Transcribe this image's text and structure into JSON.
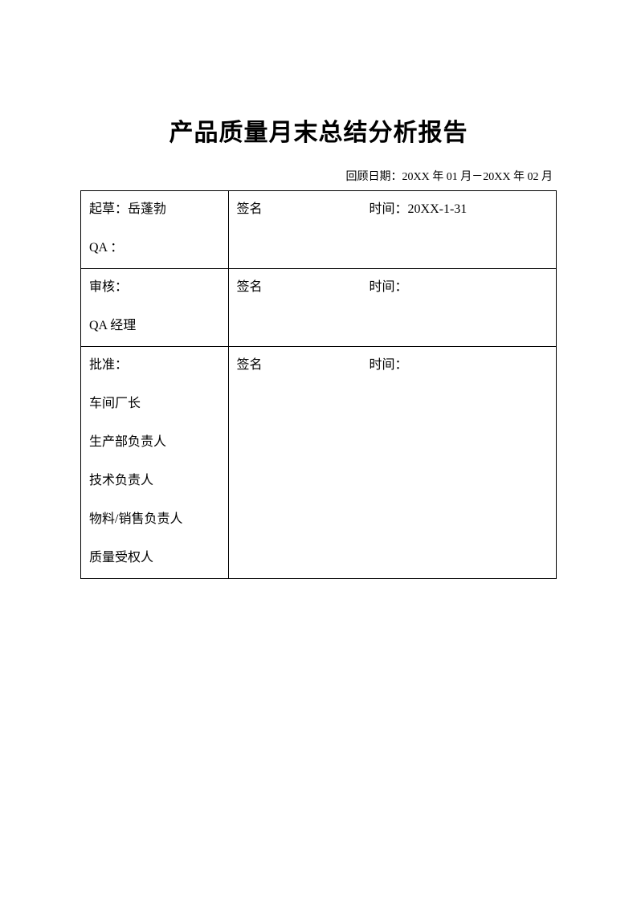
{
  "title": "产品质量月末总结分析报告",
  "review_date": "回顾日期：20XX 年 01 月－20XX 年 02 月",
  "rows": [
    {
      "left_line1": "起草：岳蓬勃",
      "left_line2": "QA ：",
      "signature_label": "签名",
      "time_label": "时间：20XX-1-31"
    },
    {
      "left_line1": "审核：",
      "left_line2": "QA 经理",
      "signature_label": "签名",
      "time_label": "时间："
    },
    {
      "left_line1": "批准：",
      "left_lines": [
        "车间厂长",
        "生产部负责人",
        "技术负责人",
        "物料/销售负责人",
        "质量受权人"
      ],
      "signature_label": "签名",
      "time_label": "时间："
    }
  ]
}
